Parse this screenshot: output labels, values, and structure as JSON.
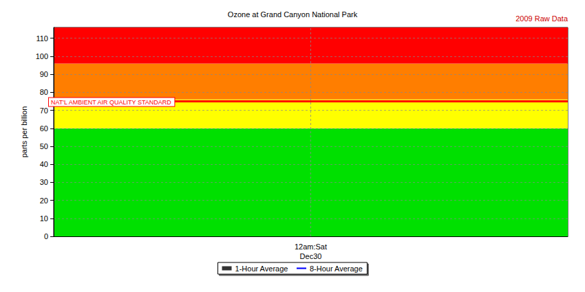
{
  "chart_data": {
    "type": "line",
    "title": "Ozone at Grand Canyon National Park",
    "subtitle": "2009 Raw Data",
    "y_label": "parts per billion",
    "categories": [
      "12am:Sat\nDec30"
    ],
    "series": [
      {
        "name": "1-Hour Average",
        "color": "#000000",
        "type": "scatter",
        "marker": "square",
        "values": [
          null
        ]
      },
      {
        "name": "8-Hour Average",
        "color": "#0000ff",
        "type": "line",
        "line_style": "solid",
        "values": [
          null
        ]
      }
    ],
    "bands": [
      {
        "from": 0,
        "to": 60,
        "color": "#00e000"
      },
      {
        "from": 60,
        "to": 76,
        "color": "#ffff00"
      },
      {
        "from": 76,
        "to": 96,
        "color": "#ff7e00"
      },
      {
        "from": 96,
        "to": 116,
        "color": "#ff0000"
      }
    ],
    "annotations": [
      {
        "text": "NAT'L AMBIENT AIR QUALITY STANDARD",
        "y": 75,
        "color": "#ff0000"
      }
    ],
    "ylim": [
      0,
      116
    ],
    "yticks": [
      0,
      10,
      20,
      30,
      40,
      50,
      60,
      70,
      80,
      90,
      100,
      110
    ],
    "grid": true,
    "legend": "bottom"
  }
}
